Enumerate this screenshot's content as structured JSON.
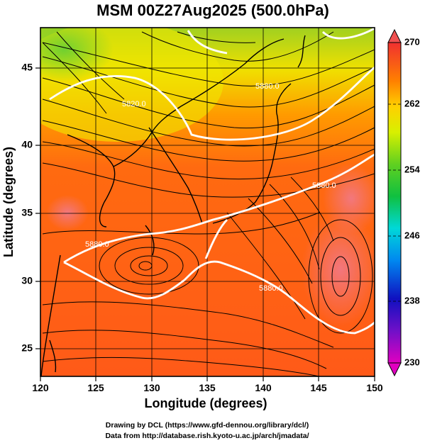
{
  "title": "MSM 00Z27Aug2025 (500.0hPa)",
  "xlabel": "Longitude (degrees)",
  "ylabel": "Latitude  (degrees)",
  "x_ticks": [
    "120",
    "125",
    "130",
    "135",
    "140",
    "145",
    "150"
  ],
  "y_ticks": [
    "25",
    "30",
    "35",
    "40",
    "45"
  ],
  "colorbar": {
    "ticks": [
      "270",
      "262",
      "254",
      "246",
      "238",
      "230"
    ],
    "min": 230,
    "max": 270,
    "colors": [
      "#e000c0",
      "#1010c0",
      "#0088f0",
      "#00d8d8",
      "#20c860",
      "#8adc20",
      "#f0f000",
      "#ffb000",
      "#ff6a10",
      "#f03030"
    ]
  },
  "contour_labels": [
    "5820.0",
    "5880.0",
    "5880.0",
    "5880.0",
    "5880.0"
  ],
  "credits": {
    "line1": "Drawing by DCL (https://www.gfd-dennou.org/library/dcl/)",
    "line2": "Data from http://database.rish.kyoto-u.ac.jp/arch/jmadata/"
  },
  "chart_data": {
    "type": "heatmap",
    "variable": "temperature (K) with wind streamlines and geopotential height contours",
    "xlim": [
      120,
      150
    ],
    "ylim": [
      22.5,
      48
    ],
    "clim": [
      230,
      270
    ],
    "contour_levels": [
      5820.0,
      5880.0
    ],
    "grid": true
  }
}
